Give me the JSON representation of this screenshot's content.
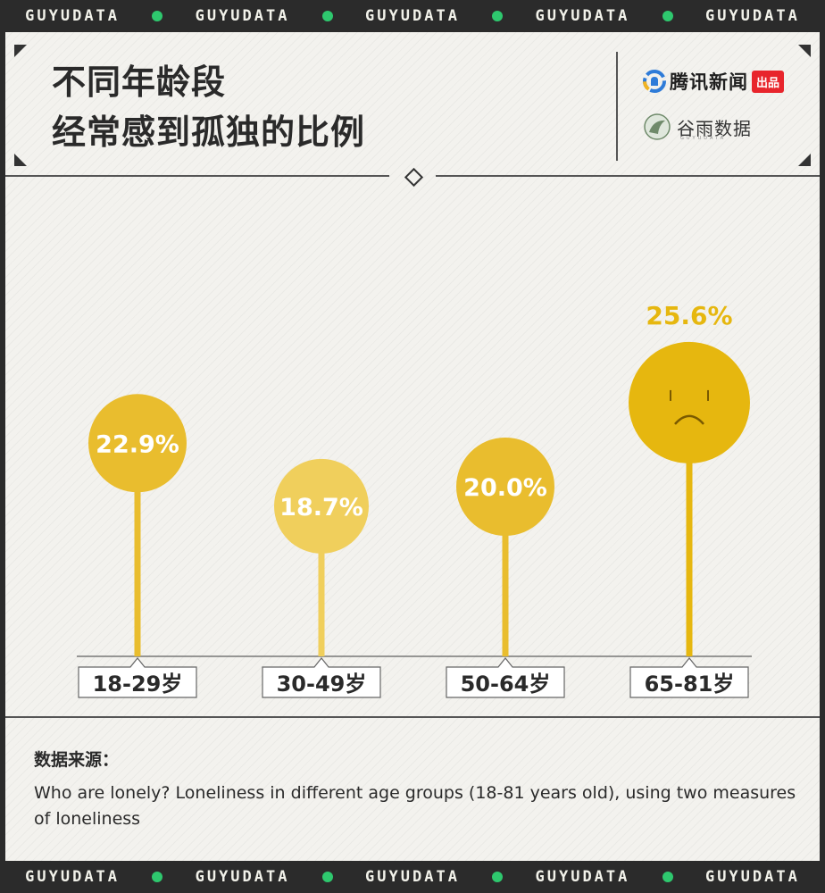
{
  "banner": {
    "word": "GUYUDATA",
    "repeat": 5
  },
  "header": {
    "title_line1": "不同年龄段",
    "title_line2": "经常感到孤独的比例"
  },
  "brands": {
    "brand1_name": "腾讯新闻",
    "brand1_tag": "出品",
    "brand2_name": "谷雨数据",
    "brand2_sub": "GUYUDATA"
  },
  "chart_data": {
    "type": "lollipop",
    "categories": [
      "18-29岁",
      "30-49岁",
      "50-64岁",
      "65-81岁"
    ],
    "values": [
      22.9,
      18.7,
      20.0,
      25.6
    ],
    "labels": [
      "22.9%",
      "18.7%",
      "20.0%",
      "25.6%"
    ],
    "highlight_index": 3,
    "colors": {
      "mark": "#e9bd2e",
      "mark_light": "#f0cf5c",
      "highlight": "#e6b70f",
      "face": "#7a5a00"
    }
  },
  "source": {
    "title": "数据来源：",
    "text": "Who are lonely? Loneliness in different age groups (18-81 years old), using two measures of loneliness"
  }
}
